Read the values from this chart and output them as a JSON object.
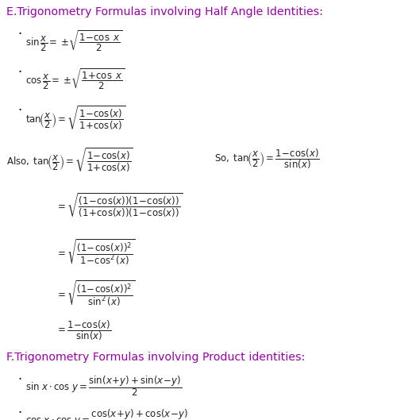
{
  "title_E": "E.Trigonometry Formulas involving Half Angle Identities:",
  "title_F": "F.Trigonometry Formulas involving Product identities:",
  "title_color": "#9900AA",
  "bg_color": "#ffffff",
  "text_color": "#222222",
  "figsize": [
    5.1,
    5.29
  ],
  "dpi": 100,
  "title_fs": 10.2,
  "formula_fs": 8.5,
  "bullet_fs": 7.0,
  "small_fs": 7.5
}
